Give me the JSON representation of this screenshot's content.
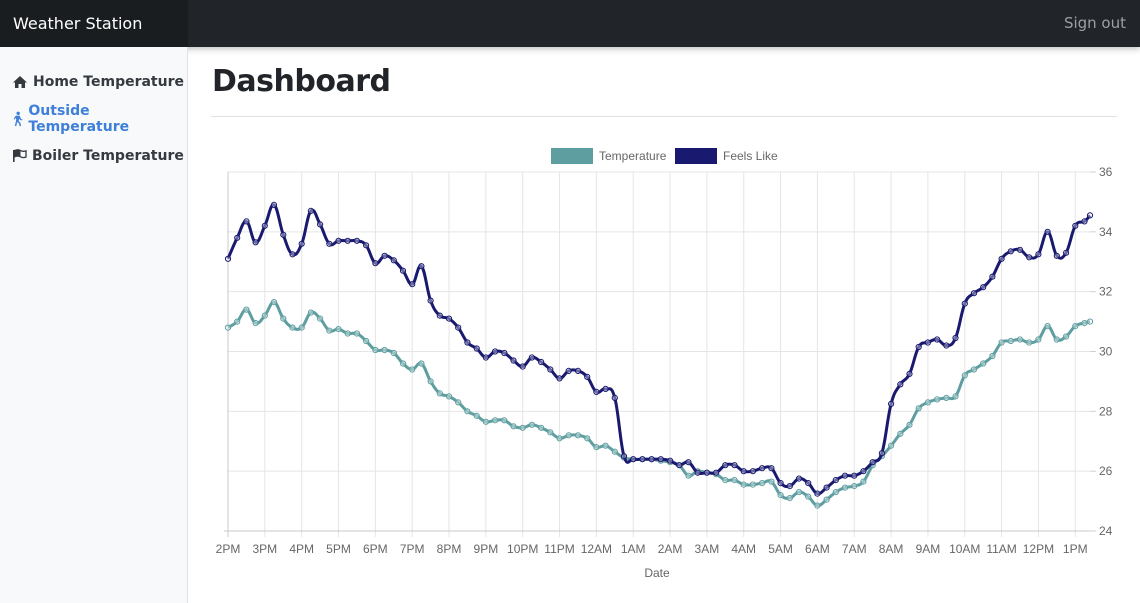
{
  "header": {
    "brand": "Weather Station",
    "signout": "Sign out"
  },
  "sidebar": {
    "items": [
      {
        "label": "Home Temperature",
        "icon": "home-icon",
        "active": false
      },
      {
        "label": "Outside Temperature",
        "icon": "walking-icon",
        "active": true
      },
      {
        "label": "Boiler Temperature",
        "icon": "flag-icon",
        "active": false
      }
    ]
  },
  "main": {
    "title": "Dashboard"
  },
  "colors": {
    "temperature": "#5f9ea0",
    "feels_like": "#191970",
    "active_link": "#3d7fd9"
  },
  "chart_data": {
    "type": "line",
    "xlabel": "Date",
    "ylabel": "",
    "ylim": [
      24,
      36
    ],
    "yticks": [
      24,
      26,
      28,
      30,
      32,
      34,
      36
    ],
    "y_axis_side": "right",
    "grid": true,
    "legend": "top-center",
    "categories": [
      "2PM",
      "3PM",
      "4PM",
      "5PM",
      "6PM",
      "7PM",
      "8PM",
      "9PM",
      "10PM",
      "11PM",
      "12AM",
      "1AM",
      "2AM",
      "3AM",
      "4AM",
      "5AM",
      "6AM",
      "7AM",
      "8AM",
      "9AM",
      "10AM",
      "11AM",
      "12PM",
      "1PM"
    ],
    "x_range_hours": [
      0,
      23.4
    ],
    "series": [
      {
        "name": "Temperature",
        "color": "#5f9ea0",
        "x": [
          0.0,
          0.25,
          0.5,
          0.75,
          1.0,
          1.25,
          1.5,
          1.75,
          2.0,
          2.25,
          2.5,
          2.75,
          3.0,
          3.25,
          3.5,
          3.75,
          4.0,
          4.25,
          4.5,
          4.75,
          5.0,
          5.25,
          5.5,
          5.75,
          6.0,
          6.25,
          6.5,
          6.75,
          7.0,
          7.25,
          7.5,
          7.75,
          8.0,
          8.25,
          8.5,
          8.75,
          9.0,
          9.25,
          9.5,
          9.75,
          10.0,
          10.25,
          10.5,
          10.75,
          11.0,
          11.25,
          11.5,
          11.75,
          12.0,
          12.25,
          12.5,
          12.75,
          13.0,
          13.25,
          13.5,
          13.75,
          14.0,
          14.25,
          14.5,
          14.75,
          15.0,
          15.25,
          15.5,
          15.75,
          16.0,
          16.25,
          16.5,
          16.75,
          17.0,
          17.25,
          17.5,
          17.75,
          18.0,
          18.25,
          18.5,
          18.75,
          19.0,
          19.25,
          19.5,
          19.75,
          20.0,
          20.25,
          20.5,
          20.75,
          21.0,
          21.25,
          21.5,
          21.75,
          22.0,
          22.25,
          22.5,
          22.75,
          23.0,
          23.25,
          23.4
        ],
        "y": [
          30.8,
          31.0,
          31.4,
          30.95,
          31.2,
          31.65,
          31.1,
          30.8,
          30.8,
          31.3,
          31.1,
          30.7,
          30.75,
          30.6,
          30.6,
          30.35,
          30.05,
          30.05,
          29.95,
          29.6,
          29.4,
          29.6,
          29.0,
          28.6,
          28.5,
          28.3,
          28.0,
          27.85,
          27.65,
          27.7,
          27.7,
          27.5,
          27.45,
          27.55,
          27.45,
          27.3,
          27.1,
          27.2,
          27.2,
          27.1,
          26.8,
          26.85,
          26.65,
          26.45,
          26.4,
          26.4,
          26.4,
          26.35,
          26.3,
          26.2,
          25.85,
          26.0,
          25.95,
          25.9,
          25.7,
          25.7,
          25.55,
          25.55,
          25.6,
          25.65,
          25.2,
          25.1,
          25.3,
          25.15,
          24.85,
          25.05,
          25.3,
          25.45,
          25.5,
          25.65,
          26.2,
          26.5,
          26.85,
          27.25,
          27.55,
          28.1,
          28.3,
          28.4,
          28.45,
          28.5,
          29.2,
          29.4,
          29.6,
          29.85,
          30.3,
          30.35,
          30.4,
          30.3,
          30.4,
          30.85,
          30.4,
          30.5,
          30.85,
          30.95,
          31.0
        ]
      },
      {
        "name": "Feels Like",
        "color": "#191970",
        "x": [
          0.0,
          0.25,
          0.5,
          0.75,
          1.0,
          1.25,
          1.5,
          1.75,
          2.0,
          2.25,
          2.5,
          2.75,
          3.0,
          3.25,
          3.5,
          3.75,
          4.0,
          4.25,
          4.5,
          4.75,
          5.0,
          5.25,
          5.5,
          5.75,
          6.0,
          6.25,
          6.5,
          6.75,
          7.0,
          7.25,
          7.5,
          7.75,
          8.0,
          8.25,
          8.5,
          8.75,
          9.0,
          9.25,
          9.5,
          9.75,
          10.0,
          10.25,
          10.5,
          10.75,
          11.0,
          11.25,
          11.5,
          11.75,
          12.0,
          12.25,
          12.5,
          12.75,
          13.0,
          13.25,
          13.5,
          13.75,
          14.0,
          14.25,
          14.5,
          14.75,
          15.0,
          15.25,
          15.5,
          15.75,
          16.0,
          16.25,
          16.5,
          16.75,
          17.0,
          17.25,
          17.5,
          17.75,
          18.0,
          18.25,
          18.5,
          18.75,
          19.0,
          19.25,
          19.5,
          19.75,
          20.0,
          20.25,
          20.5,
          20.75,
          21.0,
          21.25,
          21.5,
          21.75,
          22.0,
          22.25,
          22.5,
          22.75,
          23.0,
          23.25,
          23.4
        ],
        "y": [
          33.1,
          33.8,
          34.35,
          33.65,
          34.2,
          34.9,
          33.9,
          33.25,
          33.6,
          34.7,
          34.25,
          33.6,
          33.7,
          33.7,
          33.7,
          33.55,
          32.95,
          33.2,
          33.05,
          32.7,
          32.25,
          32.85,
          31.7,
          31.2,
          31.1,
          30.8,
          30.3,
          30.1,
          29.8,
          30.0,
          29.95,
          29.7,
          29.5,
          29.8,
          29.65,
          29.4,
          29.1,
          29.35,
          29.35,
          29.15,
          28.65,
          28.75,
          28.45,
          26.5,
          26.4,
          26.4,
          26.4,
          26.4,
          26.35,
          26.2,
          26.3,
          25.95,
          25.95,
          25.95,
          26.2,
          26.2,
          26.0,
          26.0,
          26.1,
          26.1,
          25.6,
          25.5,
          25.75,
          25.6,
          25.25,
          25.45,
          25.7,
          25.85,
          25.85,
          26.0,
          26.3,
          26.6,
          28.25,
          28.9,
          29.25,
          30.15,
          30.3,
          30.4,
          30.2,
          30.45,
          31.6,
          31.95,
          32.15,
          32.5,
          33.1,
          33.35,
          33.4,
          33.15,
          33.25,
          34.0,
          33.2,
          33.3,
          34.2,
          34.35,
          34.55
        ]
      }
    ]
  }
}
